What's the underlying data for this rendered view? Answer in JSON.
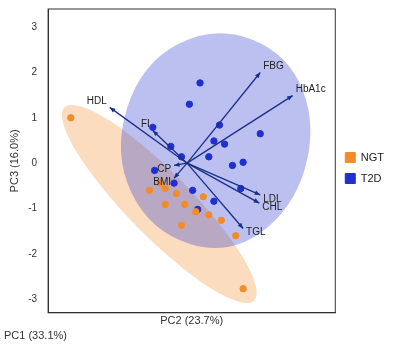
{
  "chart_data": {
    "type": "scatter",
    "x_label": "PC2 (23.7%)",
    "y_label": "PC3 (16.0%)",
    "annotations": [
      "PC1 (33.1%)"
    ],
    "xlim": [
      -3,
      3.2
    ],
    "ylim": [
      -3.3,
      3.4
    ],
    "yticks": [
      -3,
      -2,
      -1,
      0,
      1,
      2,
      3
    ],
    "grid": false,
    "legend": "right",
    "tick_labels": "y",
    "series": [
      {
        "name": "NGT",
        "color": "#f28c28",
        "x": [
          -2.51,
          -0.58,
          -0.47,
          -0.23,
          -0.05,
          0.19,
          0.47,
          0.74,
          -0.12,
          0.35,
          1.05,
          1.21,
          -0.81,
          -0.47
        ],
        "values": [
          1.0,
          -0.44,
          -0.56,
          -0.67,
          -0.91,
          -1.07,
          -1.14,
          -1.26,
          -1.37,
          -0.74,
          -1.6,
          -2.77,
          -0.6,
          -0.91
        ],
        "region": [
          [
            1.61,
            -3.2
          ],
          [
            1.34,
            -2.16
          ],
          [
            -0.06,
            -0.38
          ],
          [
            -1.78,
            1.1
          ],
          [
            -2.81,
            1.4
          ],
          [
            -2.54,
            0.36
          ],
          [
            -1.14,
            -1.42
          ],
          [
            0.58,
            -2.9
          ]
        ]
      },
      {
        "name": "T2D",
        "color": "#1f2fd1",
        "x": [
          -0.74,
          0.05,
          0.28,
          0.7,
          0.81,
          -0.35,
          -0.12,
          0.47,
          0.98,
          -0.28,
          0.12,
          1.16,
          0.58,
          1.58,
          0.58,
          -0.7,
          1.21,
          0.23
        ],
        "values": [
          0.79,
          1.3,
          1.77,
          0.84,
          0.42,
          0.37,
          0.14,
          0.14,
          -0.05,
          -0.44,
          -0.6,
          -0.56,
          -0.84,
          0.65,
          0.49,
          -0.16,
          0.02,
          -1.02
        ],
        "region": [
          [
            0.6,
            3.05
          ],
          [
            2.2,
            2.4
          ],
          [
            2.8,
            0.8
          ],
          [
            2.3,
            -1.0
          ],
          [
            0.9,
            -2.05
          ],
          [
            -0.8,
            -1.5
          ],
          [
            -1.6,
            0.2
          ],
          [
            -1.0,
            2.2
          ]
        ]
      }
    ],
    "loadings": {
      "labels": [
        "FBG",
        "HbA1c",
        "HDL",
        "FI",
        "CP",
        "BMI",
        "LDL",
        "CHL",
        "TGL"
      ],
      "x": [
        1.58,
        2.28,
        -1.67,
        -0.74,
        -0.28,
        -0.28,
        1.58,
        1.56,
        1.21
      ],
      "y": [
        2.0,
        1.49,
        1.23,
        0.72,
        -0.05,
        -0.33,
        -0.7,
        -0.88,
        -1.44
      ]
    }
  }
}
